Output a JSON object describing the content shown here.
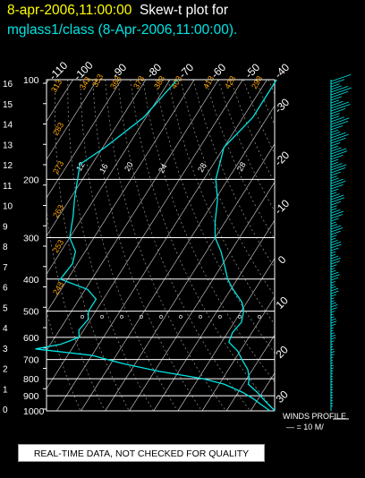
{
  "header": {
    "date_label": "8-apr-2006,11:00:00",
    "title_label": "Skew-t plot for",
    "subtitle": "mglass1/class (8-Apr-2006,11:00:00)."
  },
  "note": "REAL-TIME DATA, NOT CHECKED FOR QUALITY",
  "winds_label": "WINDS PROFILE",
  "winds_scale": "— = 10 M/",
  "colors": {
    "background": "#000000",
    "grid": "#ffffff",
    "profile": "#00e5e5",
    "adiabat_labels": "#ffa500",
    "date": "#ffff00"
  },
  "chart_data": {
    "type": "line",
    "title": "Skew-t plot for mglass1/class (8-Apr-2006,11:00:00).",
    "pressure_levels": [
      100,
      200,
      300,
      400,
      500,
      600,
      700,
      800,
      900,
      1000
    ],
    "height_ticks_km": [
      "16",
      "15",
      "14",
      "13",
      "12",
      "11",
      "10",
      "9",
      "8",
      "7",
      "6",
      "5",
      "4",
      "3",
      "2",
      "1",
      "0"
    ],
    "temperature_ticks_top": [
      "-110",
      "-100",
      "-90",
      "-80",
      "-70",
      "-60",
      "-50",
      "-40"
    ],
    "temperature_ticks_right": [
      "-30",
      "-20",
      "-10",
      "0",
      "10",
      "20",
      "30"
    ],
    "adiabat_labels": [
      "313",
      "343",
      "353",
      "363",
      "373",
      "383",
      "403",
      "413",
      "423",
      "293",
      "283",
      "273",
      "263",
      "253",
      "243"
    ],
    "mixing_ratio_labels": [
      "12",
      "16",
      "20",
      "24",
      "28",
      "28"
    ],
    "series": [
      {
        "name": "",
        "color": "#00e5e5",
        "points": [
          [
            100,
            -56
          ],
          [
            130,
            -56
          ],
          [
            160,
            -60
          ],
          [
            200,
            -55
          ],
          [
            230,
            -49
          ],
          [
            270,
            -44
          ],
          [
            300,
            -40
          ],
          [
            330,
            -34
          ],
          [
            370,
            -28
          ],
          [
            400,
            -24
          ],
          [
            430,
            -19
          ],
          [
            470,
            -12
          ],
          [
            500,
            -9
          ],
          [
            540,
            -7
          ],
          [
            580,
            -8
          ],
          [
            620,
            -7
          ],
          [
            660,
            -1
          ],
          [
            700,
            3
          ],
          [
            750,
            8
          ],
          [
            800,
            11
          ],
          [
            830,
            12
          ],
          [
            880,
            18
          ],
          [
            920,
            22
          ],
          [
            960,
            26
          ],
          [
            1000,
            30
          ]
        ]
      },
      {
        "name": "",
        "color": "#00e5e5",
        "points": [
          [
            100,
            -97
          ],
          [
            130,
            -101
          ],
          [
            160,
            -109
          ],
          [
            180,
            -115
          ],
          [
            200,
            -112
          ],
          [
            230,
            -108
          ],
          [
            260,
            -104
          ],
          [
            300,
            -100
          ],
          [
            330,
            -94
          ],
          [
            360,
            -92
          ],
          [
            400,
            -93
          ],
          [
            430,
            -79
          ],
          [
            460,
            -73
          ],
          [
            500,
            -73
          ],
          [
            530,
            -71
          ],
          [
            570,
            -72
          ],
          [
            600,
            -70
          ],
          [
            630,
            -76
          ],
          [
            650,
            -85
          ],
          [
            680,
            -60
          ],
          [
            720,
            -45
          ],
          [
            760,
            -28
          ],
          [
            800,
            -8
          ],
          [
            830,
            2
          ],
          [
            880,
            12
          ],
          [
            920,
            18
          ],
          [
            960,
            23
          ],
          [
            1000,
            28
          ]
        ]
      }
    ]
  }
}
